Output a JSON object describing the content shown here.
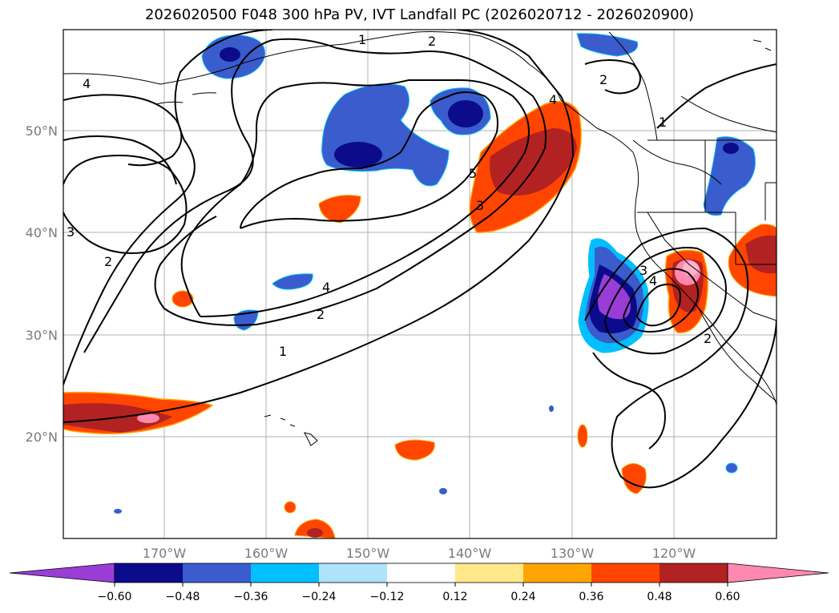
{
  "title": "2026020500 F048 300 hPa PV, IVT Landfall PC (2026020712 - 2026020900)",
  "lat_labels": [
    "50°N",
    "40°N",
    "30°N",
    "20°N"
  ],
  "lon_labels": [
    "170°W",
    "160°W",
    "150°W",
    "140°W",
    "130°W",
    "120°W"
  ],
  "colorbar": {
    "ticks": [
      "−0.60",
      "−0.48",
      "−0.36",
      "−0.24",
      "−0.12",
      "0.12",
      "0.24",
      "0.36",
      "0.48",
      "0.60"
    ],
    "colors": [
      "#9a3dd6",
      "#0b0b8c",
      "#3a5ccc",
      "#00bfff",
      "#aee3fa",
      "#ffffff",
      "#ffe88a",
      "#ffa500",
      "#ff4500",
      "#b22222",
      "#ff88b0"
    ]
  },
  "contour_labels": [
    "1",
    "2",
    "3",
    "4",
    "5",
    "4",
    "3",
    "2",
    "1",
    "2",
    "4",
    "2",
    "3",
    "4",
    "2",
    "1",
    "2",
    "3"
  ]
}
